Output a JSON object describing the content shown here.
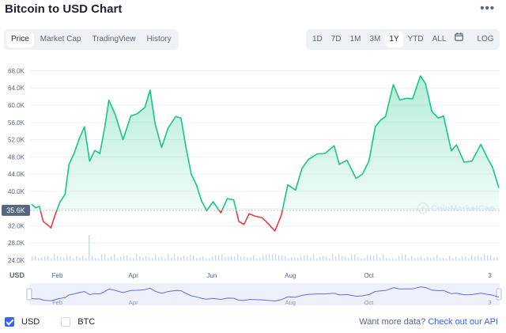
{
  "header": {
    "title": "Bitcoin to USD Chart",
    "more_icon": "more-horizontal-icon"
  },
  "tabs": {
    "items": [
      "Price",
      "Market Cap",
      "TradingView",
      "History"
    ],
    "active": "Price"
  },
  "ranges": {
    "items": [
      "1D",
      "7D",
      "1M",
      "3M",
      "1Y",
      "YTD",
      "ALL"
    ],
    "active": "1Y",
    "calendar_icon": "calendar-icon",
    "log_label": "LOG"
  },
  "chart_data": {
    "type": "area",
    "title": "Bitcoin to USD Chart",
    "ylabel": "USD",
    "y_ticks": [
      "68.0K",
      "64.0K",
      "60.0K",
      "56.0K",
      "52.0K",
      "48.0K",
      "44.0K",
      "40.0K",
      "36.0K",
      "32.0K",
      "28.0K",
      "24.0K"
    ],
    "ylim": [
      24000,
      69000
    ],
    "x_ticks": [
      "Feb",
      "Apr",
      "Jun",
      "Aug",
      "Oct",
      "3"
    ],
    "navigator_x_ticks": [
      "Feb",
      "Apr",
      "Aug",
      "Oct",
      "3"
    ],
    "baseline": {
      "value": 35600,
      "label": "35.6K"
    },
    "colors": {
      "above": "#16c784",
      "below": "#ea3943",
      "volume": "#cfd6e4",
      "navigator": "#5b6fe8"
    },
    "watermark": "CoinMarketCap",
    "x": [
      "2021-01-12",
      "2021-01-15",
      "2021-01-18",
      "2021-01-21",
      "2021-01-24",
      "2021-01-27",
      "2021-01-30",
      "2021-02-03",
      "2021-02-07",
      "2021-02-10",
      "2021-02-14",
      "2021-02-18",
      "2021-02-22",
      "2021-02-26",
      "2021-03-02",
      "2021-03-06",
      "2021-03-10",
      "2021-03-13",
      "2021-03-18",
      "2021-03-24",
      "2021-03-30",
      "2021-04-04",
      "2021-04-10",
      "2021-04-14",
      "2021-04-18",
      "2021-04-23",
      "2021-04-28",
      "2021-05-04",
      "2021-05-08",
      "2021-05-12",
      "2021-05-16",
      "2021-05-20",
      "2021-05-24",
      "2021-05-28",
      "2021-06-02",
      "2021-06-08",
      "2021-06-13",
      "2021-06-18",
      "2021-06-22",
      "2021-06-26",
      "2021-06-30",
      "2021-07-05",
      "2021-07-10",
      "2021-07-15",
      "2021-07-20",
      "2021-07-25",
      "2021-07-30",
      "2021-08-05",
      "2021-08-10",
      "2021-08-15",
      "2021-08-22",
      "2021-08-28",
      "2021-09-04",
      "2021-09-08",
      "2021-09-14",
      "2021-09-21",
      "2021-09-26",
      "2021-10-01",
      "2021-10-06",
      "2021-10-10",
      "2021-10-14",
      "2021-10-20",
      "2021-10-25",
      "2021-10-30",
      "2021-11-04",
      "2021-11-10",
      "2021-11-14",
      "2021-11-19",
      "2021-11-24",
      "2021-11-28",
      "2021-12-04",
      "2021-12-08",
      "2021-12-14",
      "2021-12-20",
      "2021-12-27",
      "2022-01-01",
      "2022-01-05",
      "2022-01-10"
    ],
    "values": [
      37000,
      36200,
      36500,
      33000,
      32300,
      31500,
      34300,
      37500,
      39300,
      46200,
      48800,
      52200,
      55000,
      47000,
      49500,
      48800,
      55200,
      61200,
      57800,
      52000,
      57500,
      58000,
      59500,
      63500,
      55600,
      50200,
      54700,
      57400,
      57000,
      50000,
      44000,
      41500,
      37800,
      35500,
      37600,
      35000,
      38300,
      38000,
      33000,
      32300,
      34800,
      34200,
      33900,
      32400,
      30800,
      34500,
      41500,
      40300,
      45300,
      47400,
      48700,
      48800,
      50600,
      46300,
      47200,
      43000,
      44000,
      47000,
      55000,
      56500,
      57400,
      64800,
      61200,
      61600,
      61500,
      66800,
      65000,
      58500,
      57000,
      57500,
      49400,
      50800,
      46800,
      47000,
      50900,
      47800,
      45600,
      40800
    ]
  },
  "footer": {
    "usd_label": "USD",
    "btc_label": "BTC",
    "more_data_text": "Want more data?",
    "api_link": "Check out our API"
  }
}
